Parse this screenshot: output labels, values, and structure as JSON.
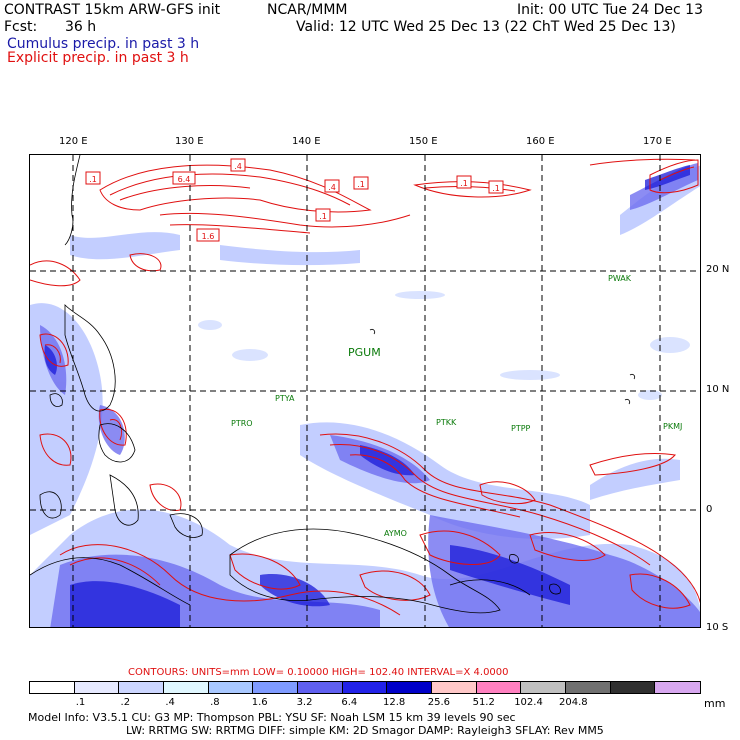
{
  "header": {
    "model_title": "CONTRAST 15km ARW-GFS init",
    "org": "NCAR/MMM",
    "init": "Init: 00 UTC Tue 24 Dec 13",
    "fcst_label": "Fcst:",
    "fcst_value": "36 h",
    "valid": "Valid: 12 UTC Wed 25 Dec 13 (22 ChT Wed 25 Dec 13)",
    "cumulus": "Cumulus precip. in past 3 h",
    "explicit": "Explicit precip. in past 3 h"
  },
  "map": {
    "lon_labels": [
      "120 E",
      "130 E",
      "140 E",
      "150 E",
      "160 E",
      "170 E"
    ],
    "lat_labels": [
      "20 N",
      "10 N",
      "0",
      "10 S"
    ],
    "stations": [
      "PGUM",
      "PTYA",
      "PTRO",
      "PTKK",
      "PTPP",
      "PKMJ",
      "PWAK",
      "AYMO"
    ],
    "contour_labels": [
      ".1",
      "6.4",
      ".4",
      ".4",
      ".1",
      ".1",
      ".1",
      ".1",
      "1.6"
    ],
    "colors": {
      "contour": "#e01010",
      "cumulus_dark": "#1a1ad8",
      "cumulus_mid": "#6f6ff0",
      "cumulus_light": "#b9c6ff",
      "grid": "#000000",
      "station": "#0a7a0a"
    }
  },
  "contours_line": "CONTOURS:  UNITS=mm   LOW=  0.10000        HIGH=   102.40        INTERVAL=X   4.0000",
  "legend": {
    "levels": [
      ".1",
      ".2",
      ".4",
      ".8",
      "1.6",
      "3.2",
      "6.4",
      "12.8",
      "25.6",
      "51.2",
      "102.4",
      "204.8"
    ],
    "unit": "mm",
    "colors": [
      "#ffffff",
      "#e6e9ff",
      "#ccd6ff",
      "#e0f7ff",
      "#a9c8ff",
      "#7f9bff",
      "#6060f0",
      "#2222e8",
      "#0000c8",
      "#ffc8c8",
      "#ff80c0",
      "#c0c0c0",
      "#707070",
      "#303030",
      "#d8a8f0"
    ]
  },
  "footer": {
    "line1": "Model Info: V3.5.1    CU: G3     MP: Thompson     PBL: YSU      SF: Noah LSM      15 km    39 levels    90 sec",
    "line2": "LW: RRTMG    SW: RRTMG   DIFF: simple KM: 2D Smagor DAMP: Rayleigh3  SFLAY: Rev MM5"
  }
}
